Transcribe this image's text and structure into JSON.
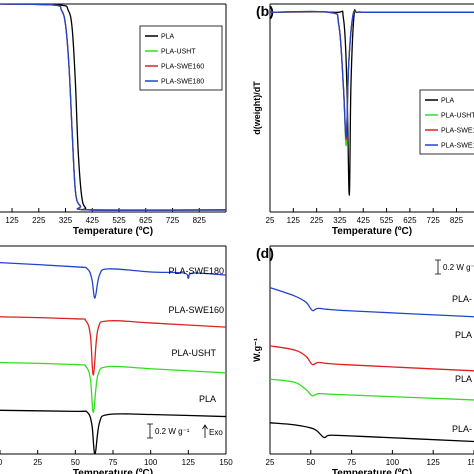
{
  "colors": {
    "PLA": "#000000",
    "PLA-USHT": "#33dd22",
    "PLA-SWE160": "#e02020",
    "PLA-SWE180": "#2244cc"
  },
  "chart_data": [
    {
      "id": "a",
      "type": "line",
      "panel_label": "",
      "xlabel": "Temperature (ºC)",
      "ylabel": "",
      "xlim": [
        80,
        925
      ],
      "ylim": [
        0,
        100
      ],
      "x_ticks": [
        "125",
        "225",
        "325",
        "425",
        "525",
        "625",
        "725",
        "825"
      ],
      "x_tick_values": [
        125,
        225,
        325,
        425,
        525,
        625,
        725,
        825
      ],
      "legend": [
        "PLA",
        "PLA-USHT",
        "PLA-SWE160",
        "PLA-SWE180"
      ],
      "legend_position": "top-right",
      "series": [
        {
          "name": "PLA",
          "x": [
            80,
            300,
            335,
            350,
            362,
            372,
            385,
            400,
            430,
            925
          ],
          "y": [
            100,
            99.5,
            97,
            88,
            62,
            30,
            8,
            2,
            1,
            1
          ]
        },
        {
          "name": "PLA-USHT",
          "x": [
            80,
            280,
            310,
            325,
            338,
            350,
            362,
            380,
            420,
            925
          ],
          "y": [
            100,
            99.5,
            97,
            90,
            70,
            38,
            10,
            3,
            1,
            1
          ]
        },
        {
          "name": "PLA-SWE160",
          "x": [
            80,
            280,
            310,
            325,
            338,
            350,
            362,
            380,
            420,
            925
          ],
          "y": [
            100,
            99.5,
            97,
            90,
            70,
            38,
            10,
            3,
            1,
            1
          ]
        },
        {
          "name": "PLA-SWE180",
          "x": [
            80,
            280,
            310,
            325,
            338,
            350,
            362,
            380,
            420,
            925
          ],
          "y": [
            100,
            99.5,
            97,
            90,
            70,
            38,
            10,
            3,
            1,
            1
          ]
        }
      ]
    },
    {
      "id": "b",
      "type": "line",
      "panel_label": "(b)",
      "xlabel": "Temperature (ºC)",
      "ylabel": "d(weight)/dT",
      "xlim": [
        25,
        900
      ],
      "ylim": [
        0,
        100
      ],
      "x_ticks": [
        "25",
        "125",
        "225",
        "325",
        "425",
        "525",
        "625",
        "725",
        "825"
      ],
      "x_tick_values": [
        25,
        125,
        225,
        325,
        425,
        525,
        625,
        725,
        825
      ],
      "legend": [
        "PLA",
        "PLA-USHT",
        "PLA-SWE160",
        "PLA-SWE180"
      ],
      "legend_position": "right",
      "series": [
        {
          "name": "PLA",
          "x": [
            25,
            300,
            340,
            355,
            365,
            372,
            385,
            400,
            470,
            900
          ],
          "y": [
            96,
            96,
            93,
            60,
            8,
            60,
            94,
            96,
            96,
            96
          ]
        },
        {
          "name": "PLA-USHT",
          "x": [
            25,
            280,
            320,
            340,
            352,
            362,
            380,
            400,
            470,
            900
          ],
          "y": [
            96,
            96,
            90,
            60,
            32,
            70,
            94,
            96,
            96,
            96
          ]
        },
        {
          "name": "PLA-SWE160",
          "x": [
            25,
            280,
            320,
            340,
            352,
            362,
            380,
            400,
            470,
            900
          ],
          "y": [
            96,
            96,
            90,
            60,
            35,
            70,
            94,
            96,
            96,
            96
          ]
        },
        {
          "name": "PLA-SWE180",
          "x": [
            25,
            280,
            320,
            340,
            352,
            362,
            380,
            400,
            470,
            900
          ],
          "y": [
            96,
            96,
            90,
            60,
            36,
            70,
            94,
            96,
            96,
            96
          ]
        }
      ]
    },
    {
      "id": "c",
      "type": "line",
      "panel_label": "",
      "xlabel": "Temperature (ºC)",
      "ylabel": "",
      "xlim": [
        0,
        150
      ],
      "ylim": [
        0,
        100
      ],
      "x_ticks": [
        "0",
        "25",
        "50",
        "75",
        "100",
        "125",
        "150"
      ],
      "x_tick_values": [
        0,
        25,
        50,
        75,
        100,
        125,
        150
      ],
      "annotation_scale": "0.2 W g⁻¹",
      "annotation_exo": "Exo",
      "curve_labels": [
        "PLA-SWE180",
        "PLA-SWE160",
        "PLA-USHT",
        "PLA"
      ],
      "series": [
        {
          "name": "PLA-SWE180",
          "x": [
            0,
            50,
            58,
            61,
            63,
            66,
            72,
            100,
            122,
            125,
            128,
            150
          ],
          "y": [
            92,
            90,
            89,
            84,
            75,
            86,
            89,
            87.5,
            87,
            84.5,
            87,
            86
          ]
        },
        {
          "name": "PLA-SWE160",
          "x": [
            0,
            50,
            57,
            60,
            62,
            65,
            72,
            100,
            150
          ],
          "y": [
            66,
            65,
            64,
            57,
            38,
            60,
            64,
            63,
            61
          ]
        },
        {
          "name": "PLA-USHT",
          "x": [
            0,
            50,
            57,
            60,
            62,
            65,
            72,
            100,
            150
          ],
          "y": [
            44,
            43,
            42,
            36,
            20,
            38,
            42,
            41,
            39
          ]
        },
        {
          "name": "PLA",
          "x": [
            0,
            50,
            58,
            61,
            63,
            66,
            72,
            100,
            150
          ],
          "y": [
            21,
            20.5,
            20,
            14,
            0,
            15,
            19,
            19,
            18
          ]
        }
      ]
    },
    {
      "id": "d",
      "type": "line",
      "panel_label": "(d)",
      "xlabel": "Temperature (ºC)",
      "ylabel": "W.g⁻¹",
      "xlim": [
        25,
        150
      ],
      "ylim": [
        0,
        100
      ],
      "x_ticks": [
        "25",
        "50",
        "75",
        "100",
        "125",
        "150"
      ],
      "x_tick_values": [
        25,
        50,
        75,
        100,
        125,
        150
      ],
      "annotation_scale": "0.2 W g⁻¹",
      "curve_labels": [
        "PLA-",
        "PLA",
        "PLA",
        "PLA-"
      ],
      "series": [
        {
          "name": "PLA-SWE180",
          "x": [
            25,
            40,
            47,
            51,
            55,
            70,
            150
          ],
          "y": [
            80,
            76,
            73,
            69,
            70,
            69,
            66
          ]
        },
        {
          "name": "PLA-SWE160",
          "x": [
            25,
            40,
            47,
            51,
            55,
            70,
            150
          ],
          "y": [
            52,
            50,
            47,
            43,
            44,
            43,
            40
          ]
        },
        {
          "name": "PLA-USHT",
          "x": [
            25,
            40,
            47,
            51,
            55,
            70,
            150
          ],
          "y": [
            36,
            34.5,
            31,
            28,
            29,
            28.5,
            26
          ]
        },
        {
          "name": "PLA",
          "x": [
            25,
            40,
            52,
            58,
            62,
            80,
            150
          ],
          "y": [
            15,
            14,
            12,
            8,
            9,
            8.5,
            6
          ]
        }
      ]
    }
  ]
}
